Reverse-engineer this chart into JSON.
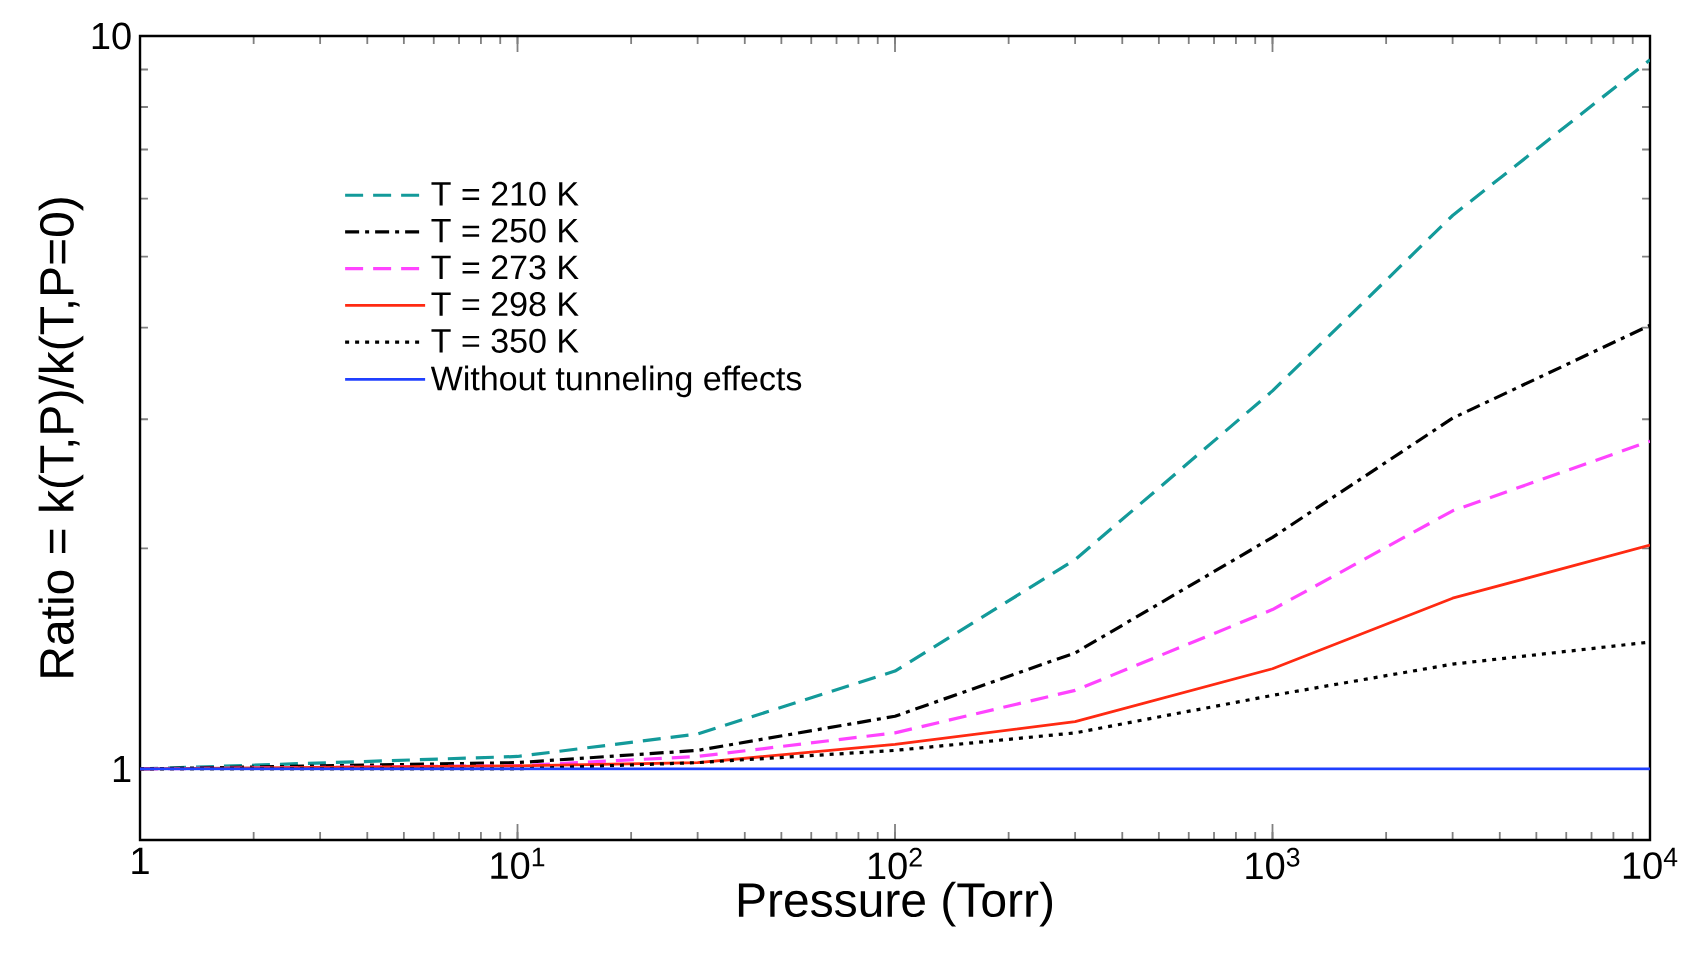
{
  "chart_data": {
    "type": "line",
    "xlabel": "Pressure (Torr)",
    "ylabel": "Ratio = k(T,P)/k(T,P=0)",
    "log": "xy",
    "xlim": [
      1,
      10000
    ],
    "ylim": [
      0.8,
      10
    ],
    "xticks": [
      1,
      {
        "value": 10,
        "label": "10$^{1}$"
      },
      {
        "value": 100,
        "label": "10$^{2}$"
      },
      {
        "value": 1000,
        "label": "10$^{3}$"
      },
      {
        "value": 10000,
        "label": "10$^{4}$"
      }
    ],
    "yticks": [
      1,
      10
    ],
    "grid": false,
    "legend": "top left",
    "marker": "none",
    "x": [
      1,
      10,
      30,
      100,
      300,
      1000,
      3000,
      10000
    ],
    "series": [
      {
        "name": "T = 210 K",
        "color": "#139a9a",
        "line_style": "dashed",
        "values": [
          1,
          1.04,
          1.116,
          1.36,
          1.93,
          3.28,
          5.69,
          9.28
        ]
      },
      {
        "name": "T = 250 K",
        "color": "#000000",
        "line_style": "dashdot",
        "values": [
          1,
          1.02,
          1.06,
          1.18,
          1.44,
          2.07,
          3.01,
          4.03
        ]
      },
      {
        "name": "T = 273 K",
        "color": "#ff44ff",
        "line_style": "dashed",
        "values": [
          1,
          1.01,
          1.04,
          1.12,
          1.28,
          1.65,
          2.25,
          2.8
        ]
      },
      {
        "name": "T = 298 K",
        "color": "#ff2a12",
        "line_style": "solid",
        "values": [
          1,
          1.01,
          1.02,
          1.08,
          1.16,
          1.37,
          1.71,
          2.02
        ]
      },
      {
        "name": "T = 350 K",
        "color": "#000000",
        "line_style": "dotted",
        "values": [
          1,
          1.0,
          1.02,
          1.06,
          1.12,
          1.26,
          1.39,
          1.49
        ]
      },
      {
        "name": "Without tunneling effects",
        "color": "#2040ff",
        "line_style": "solid",
        "values": [
          1,
          1,
          1,
          1,
          1,
          1,
          1,
          1
        ]
      }
    ]
  }
}
